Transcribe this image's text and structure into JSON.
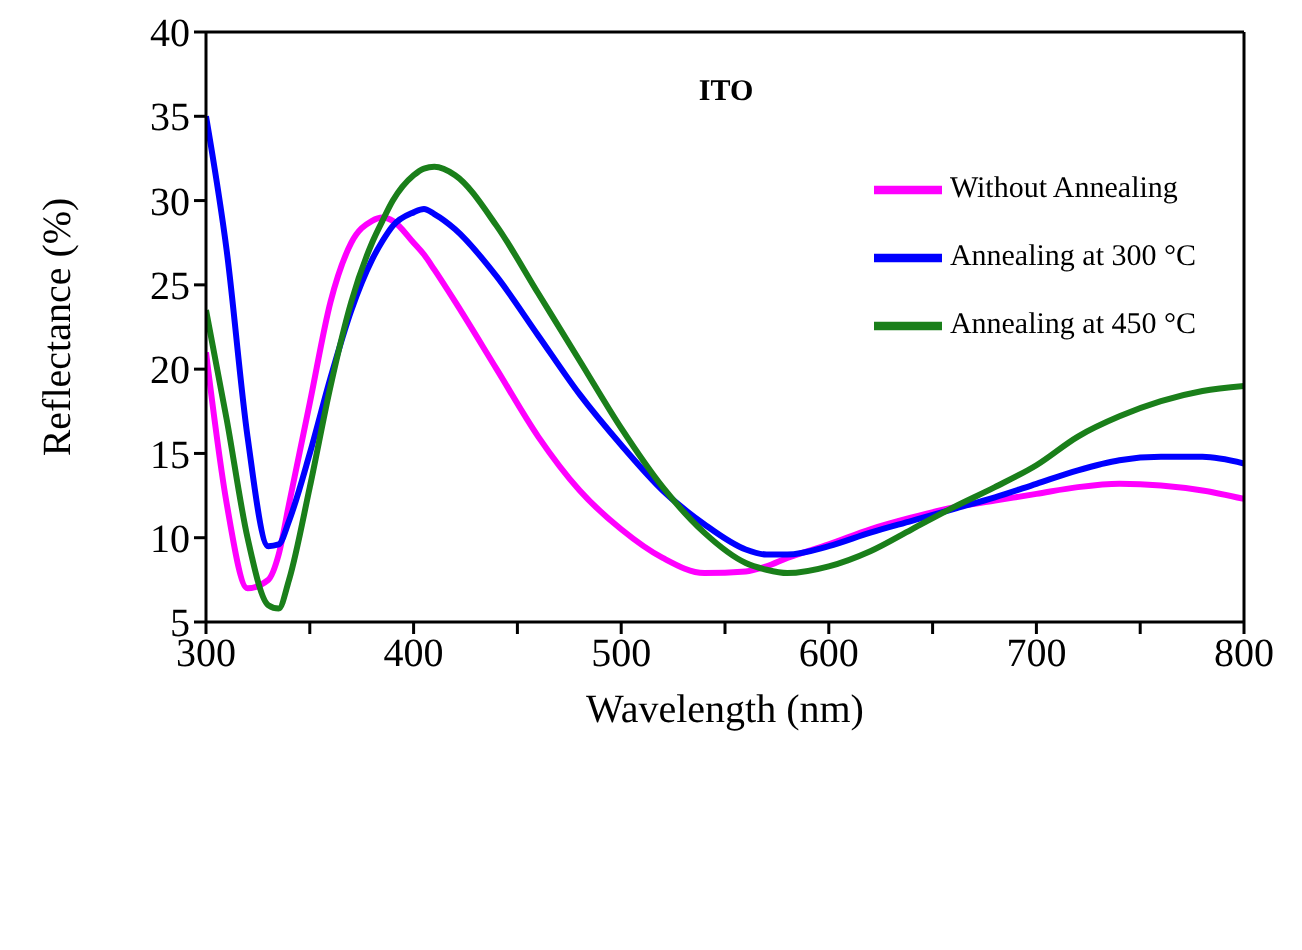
{
  "chart_data": {
    "type": "line",
    "title": "ITO",
    "xlabel": "Wavelength (nm)",
    "ylabel": "Reflectance (%)",
    "x": [
      300,
      310,
      320,
      330,
      335,
      340,
      350,
      360,
      370,
      380,
      385,
      390,
      400,
      405,
      410,
      420,
      440,
      460,
      480,
      500,
      520,
      540,
      560,
      570,
      580,
      600,
      620,
      640,
      660,
      680,
      700,
      720,
      740,
      760,
      780,
      800
    ],
    "series": [
      {
        "name": "Without Annealing",
        "color": "#ff00ff",
        "values": [
          21,
          12,
          7,
          7.5,
          9,
          12,
          18,
          24,
          27.5,
          28.8,
          29,
          28.8,
          27.5,
          26.8,
          25.9,
          24,
          20,
          16,
          12.8,
          10.5,
          8.8,
          7.9,
          8,
          8.3,
          8.8,
          9.6,
          10.5,
          11.2,
          11.8,
          12.2,
          12.6,
          13,
          13.2,
          13.1,
          12.8,
          12.3
        ]
      },
      {
        "name": "Annealing at 300 °C",
        "color": "#0000ff",
        "values": [
          35,
          27,
          16,
          9.5,
          9.6,
          11,
          15,
          19.5,
          23.5,
          26.5,
          27.6,
          28.5,
          29.3,
          29.5,
          29.2,
          28.3,
          25.5,
          22,
          18.5,
          15.5,
          12.8,
          10.8,
          9.3,
          9,
          9,
          9.5,
          10.3,
          11,
          11.7,
          12.4,
          13.2,
          14,
          14.6,
          14.8,
          14.8,
          14.4
        ]
      },
      {
        "name": "Annealing at 450 °C",
        "color": "#1a7f1a",
        "values": [
          23.5,
          17,
          10,
          6,
          5.8,
          7.5,
          13,
          19,
          24,
          27.5,
          28.8,
          30,
          31.5,
          31.9,
          32,
          31.5,
          28.5,
          24.5,
          20.5,
          16.5,
          13,
          10.3,
          8.5,
          8.1,
          7.9,
          8.3,
          9.2,
          10.5,
          11.8,
          13,
          14.3,
          16,
          17.2,
          18.1,
          18.7,
          19
        ]
      }
    ],
    "xlim": [
      300,
      800
    ],
    "xticks": [
      300,
      {
        "value": 350,
        "label": null
      },
      400,
      {
        "value": 450,
        "label": null
      },
      500,
      {
        "value": 550,
        "label": null
      },
      600,
      {
        "value": 650,
        "label": null
      },
      700,
      {
        "value": 750,
        "label": null
      },
      800
    ],
    "ylim": [
      5,
      40
    ],
    "yticks": [
      5,
      10,
      15,
      20,
      25,
      30,
      35,
      40
    ],
    "legend": "top right",
    "grid": false
  }
}
